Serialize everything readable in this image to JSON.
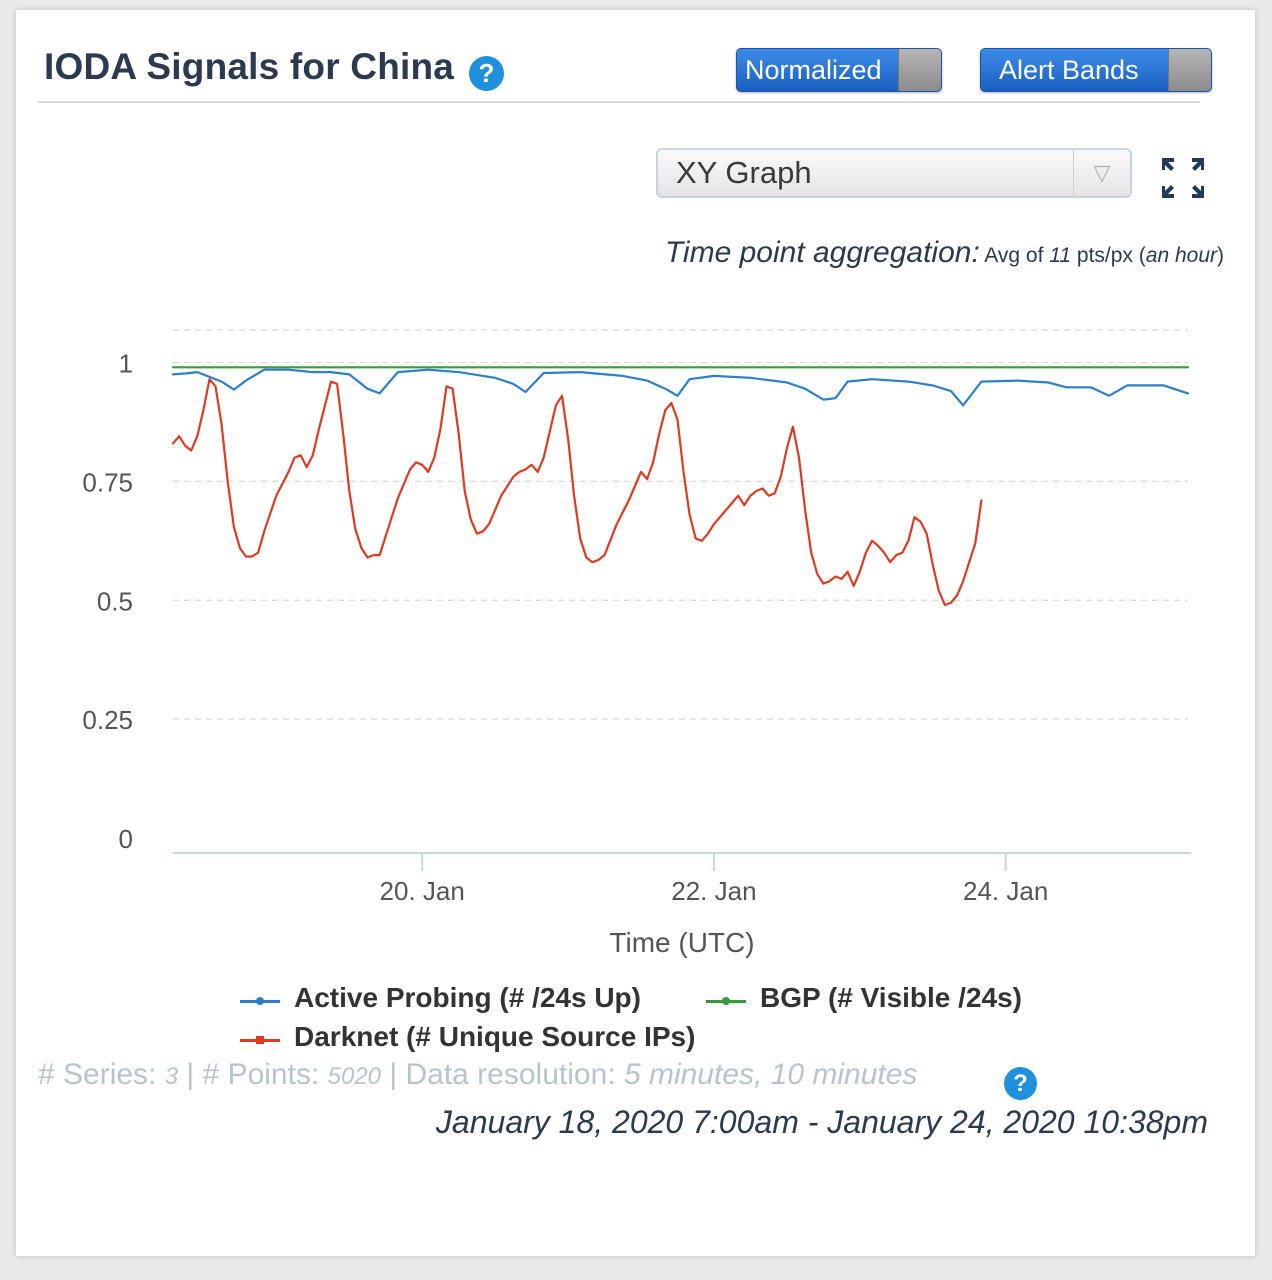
{
  "header": {
    "title": "IODA Signals for China",
    "help_icon": "question-circle-icon",
    "normalized_label": "Normalized",
    "alert_bands_label": "Alert Bands"
  },
  "view_select": {
    "value": "XY Graph"
  },
  "aggregation": {
    "label": "Time point aggregation:",
    "prefix": "Avg of ",
    "count": "11",
    "unit": " pts/px (",
    "period": "an hour",
    "suffix": ")"
  },
  "chart_data": {
    "type": "line",
    "xlabel": "Time (UTC)",
    "x_ticks": [
      "20. Jan",
      "22. Jan",
      "24. Jan"
    ],
    "y_ticks": [
      "0",
      "0.25",
      "0.5",
      "0.75",
      "1"
    ],
    "ylim": [
      0,
      1.1
    ],
    "x_range": [
      "2020-01-18 07:00",
      "2020-01-25 06:00"
    ],
    "grid": true,
    "legend_position": "bottom",
    "colors": {
      "active_probing": "#2d7fc9",
      "bgp": "#3a9a3a",
      "darknet": "#e03a22"
    },
    "series": [
      {
        "name": "Active Probing (# /24s Up)",
        "color": "#2d7fc9",
        "points": [
          [
            "2020-01-18 07:00",
            0.975
          ],
          [
            "2020-01-18 09:00",
            0.977
          ],
          [
            "2020-01-18 11:00",
            0.98
          ],
          [
            "2020-01-18 15:00",
            0.96
          ],
          [
            "2020-01-18 17:00",
            0.943
          ],
          [
            "2020-01-18 19:00",
            0.962
          ],
          [
            "2020-01-18 22:00",
            0.985
          ],
          [
            "2020-01-19 02:00",
            0.985
          ],
          [
            "2020-01-19 06:00",
            0.98
          ],
          [
            "2020-01-19 09:00",
            0.98
          ],
          [
            "2020-01-19 12:00",
            0.975
          ],
          [
            "2020-01-19 15:00",
            0.945
          ],
          [
            "2020-01-19 17:00",
            0.935
          ],
          [
            "2020-01-19 20:00",
            0.98
          ],
          [
            "2020-01-20 01:00",
            0.985
          ],
          [
            "2020-01-20 06:00",
            0.98
          ],
          [
            "2020-01-20 12:00",
            0.968
          ],
          [
            "2020-01-20 15:00",
            0.955
          ],
          [
            "2020-01-20 17:00",
            0.938
          ],
          [
            "2020-01-20 20:00",
            0.978
          ],
          [
            "2020-01-21 02:00",
            0.98
          ],
          [
            "2020-01-21 09:00",
            0.972
          ],
          [
            "2020-01-21 13:00",
            0.962
          ],
          [
            "2020-01-21 16:00",
            0.945
          ],
          [
            "2020-01-21 18:00",
            0.93
          ],
          [
            "2020-01-21 20:00",
            0.965
          ],
          [
            "2020-01-22 00:00",
            0.972
          ],
          [
            "2020-01-22 06:00",
            0.968
          ],
          [
            "2020-01-22 12:00",
            0.958
          ],
          [
            "2020-01-22 15:00",
            0.945
          ],
          [
            "2020-01-22 18:00",
            0.922
          ],
          [
            "2020-01-22 20:00",
            0.925
          ],
          [
            "2020-01-22 22:00",
            0.96
          ],
          [
            "2020-01-23 02:00",
            0.965
          ],
          [
            "2020-01-23 08:00",
            0.96
          ],
          [
            "2020-01-23 12:00",
            0.952
          ],
          [
            "2020-01-23 15:00",
            0.94
          ],
          [
            "2020-01-23 17:00",
            0.91
          ],
          [
            "2020-01-23 20:00",
            0.96
          ],
          [
            "2020-01-24 02:00",
            0.962
          ],
          [
            "2020-01-24 07:00",
            0.958
          ],
          [
            "2020-01-24 10:00",
            0.948
          ],
          [
            "2020-01-24 14:00",
            0.948
          ],
          [
            "2020-01-24 17:00",
            0.93
          ],
          [
            "2020-01-24 20:00",
            0.952
          ],
          [
            "2020-01-25 02:00",
            0.952
          ],
          [
            "2020-01-25 06:00",
            0.935
          ]
        ]
      },
      {
        "name": "BGP (# Visible /24s)",
        "color": "#3a9a3a",
        "points": [
          [
            "2020-01-18 07:00",
            0.99
          ],
          [
            "2020-01-25 06:00",
            0.99
          ]
        ]
      },
      {
        "name": "Darknet (# Unique Source IPs)",
        "color": "#e03a22",
        "points": [
          [
            "2020-01-18 07:00",
            0.83
          ],
          [
            "2020-01-18 08:00",
            0.845
          ],
          [
            "2020-01-18 09:00",
            0.825
          ],
          [
            "2020-01-18 10:00",
            0.815
          ],
          [
            "2020-01-18 11:00",
            0.845
          ],
          [
            "2020-01-18 12:00",
            0.9
          ],
          [
            "2020-01-18 13:00",
            0.965
          ],
          [
            "2020-01-18 14:00",
            0.95
          ],
          [
            "2020-01-18 15:00",
            0.87
          ],
          [
            "2020-01-18 16:00",
            0.75
          ],
          [
            "2020-01-18 17:00",
            0.655
          ],
          [
            "2020-01-18 18:00",
            0.61
          ],
          [
            "2020-01-18 19:00",
            0.592
          ],
          [
            "2020-01-18 20:00",
            0.592
          ],
          [
            "2020-01-18 21:00",
            0.6
          ],
          [
            "2020-01-18 22:00",
            0.645
          ],
          [
            "2020-01-19 00:00",
            0.72
          ],
          [
            "2020-01-19 02:00",
            0.77
          ],
          [
            "2020-01-19 03:00",
            0.8
          ],
          [
            "2020-01-19 04:00",
            0.805
          ],
          [
            "2020-01-19 05:00",
            0.78
          ],
          [
            "2020-01-19 06:00",
            0.805
          ],
          [
            "2020-01-19 07:00",
            0.86
          ],
          [
            "2020-01-19 09:00",
            0.96
          ],
          [
            "2020-01-19 10:00",
            0.955
          ],
          [
            "2020-01-19 11:00",
            0.85
          ],
          [
            "2020-01-19 12:00",
            0.73
          ],
          [
            "2020-01-19 13:00",
            0.65
          ],
          [
            "2020-01-19 14:00",
            0.61
          ],
          [
            "2020-01-19 15:00",
            0.59
          ],
          [
            "2020-01-19 16:00",
            0.595
          ],
          [
            "2020-01-19 17:00",
            0.595
          ],
          [
            "2020-01-19 18:00",
            0.635
          ],
          [
            "2020-01-19 20:00",
            0.715
          ],
          [
            "2020-01-19 22:00",
            0.775
          ],
          [
            "2020-01-19 23:00",
            0.79
          ],
          [
            "2020-01-20 00:00",
            0.785
          ],
          [
            "2020-01-20 01:00",
            0.77
          ],
          [
            "2020-01-20 02:00",
            0.8
          ],
          [
            "2020-01-20 03:00",
            0.86
          ],
          [
            "2020-01-20 04:00",
            0.95
          ],
          [
            "2020-01-20 05:00",
            0.945
          ],
          [
            "2020-01-20 06:00",
            0.85
          ],
          [
            "2020-01-20 07:00",
            0.73
          ],
          [
            "2020-01-20 08:00",
            0.67
          ],
          [
            "2020-01-20 09:00",
            0.64
          ],
          [
            "2020-01-20 10:00",
            0.645
          ],
          [
            "2020-01-20 11:00",
            0.66
          ],
          [
            "2020-01-20 13:00",
            0.72
          ],
          [
            "2020-01-20 15:00",
            0.76
          ],
          [
            "2020-01-20 16:00",
            0.77
          ],
          [
            "2020-01-20 17:00",
            0.775
          ],
          [
            "2020-01-20 18:00",
            0.785
          ],
          [
            "2020-01-20 19:00",
            0.77
          ],
          [
            "2020-01-20 20:00",
            0.8
          ],
          [
            "2020-01-20 22:00",
            0.91
          ],
          [
            "2020-01-20 23:00",
            0.93
          ],
          [
            "2020-01-21 00:00",
            0.84
          ],
          [
            "2020-01-21 01:00",
            0.72
          ],
          [
            "2020-01-21 02:00",
            0.63
          ],
          [
            "2020-01-21 03:00",
            0.59
          ],
          [
            "2020-01-21 04:00",
            0.58
          ],
          [
            "2020-01-21 05:00",
            0.585
          ],
          [
            "2020-01-21 06:00",
            0.595
          ],
          [
            "2020-01-21 08:00",
            0.66
          ],
          [
            "2020-01-21 10:00",
            0.71
          ],
          [
            "2020-01-21 12:00",
            0.77
          ],
          [
            "2020-01-21 13:00",
            0.755
          ],
          [
            "2020-01-21 14:00",
            0.79
          ],
          [
            "2020-01-21 15:00",
            0.85
          ],
          [
            "2020-01-21 16:00",
            0.9
          ],
          [
            "2020-01-21 17:00",
            0.915
          ],
          [
            "2020-01-21 18:00",
            0.88
          ],
          [
            "2020-01-21 19:00",
            0.77
          ],
          [
            "2020-01-21 20:00",
            0.68
          ],
          [
            "2020-01-21 21:00",
            0.63
          ],
          [
            "2020-01-21 22:00",
            0.625
          ],
          [
            "2020-01-21 23:00",
            0.64
          ],
          [
            "2020-01-22 00:00",
            0.66
          ],
          [
            "2020-01-22 02:00",
            0.69
          ],
          [
            "2020-01-22 04:00",
            0.72
          ],
          [
            "2020-01-22 05:00",
            0.7
          ],
          [
            "2020-01-22 06:00",
            0.72
          ],
          [
            "2020-01-22 07:00",
            0.73
          ],
          [
            "2020-01-22 08:00",
            0.735
          ],
          [
            "2020-01-22 09:00",
            0.72
          ],
          [
            "2020-01-22 10:00",
            0.725
          ],
          [
            "2020-01-22 11:00",
            0.76
          ],
          [
            "2020-01-22 12:00",
            0.82
          ],
          [
            "2020-01-22 13:00",
            0.865
          ],
          [
            "2020-01-22 14:00",
            0.8
          ],
          [
            "2020-01-22 15:00",
            0.69
          ],
          [
            "2020-01-22 16:00",
            0.6
          ],
          [
            "2020-01-22 17:00",
            0.555
          ],
          [
            "2020-01-22 18:00",
            0.535
          ],
          [
            "2020-01-22 19:00",
            0.54
          ],
          [
            "2020-01-22 20:00",
            0.55
          ],
          [
            "2020-01-22 21:00",
            0.545
          ],
          [
            "2020-01-22 22:00",
            0.56
          ],
          [
            "2020-01-22 23:00",
            0.53
          ],
          [
            "2020-01-23 00:00",
            0.56
          ],
          [
            "2020-01-23 01:00",
            0.6
          ],
          [
            "2020-01-23 02:00",
            0.625
          ],
          [
            "2020-01-23 03:00",
            0.615
          ],
          [
            "2020-01-23 04:00",
            0.6
          ],
          [
            "2020-01-23 05:00",
            0.58
          ],
          [
            "2020-01-23 06:00",
            0.595
          ],
          [
            "2020-01-23 07:00",
            0.6
          ],
          [
            "2020-01-23 08:00",
            0.625
          ],
          [
            "2020-01-23 09:00",
            0.675
          ],
          [
            "2020-01-23 10:00",
            0.665
          ],
          [
            "2020-01-23 11:00",
            0.64
          ],
          [
            "2020-01-23 12:00",
            0.575
          ],
          [
            "2020-01-23 13:00",
            0.52
          ],
          [
            "2020-01-23 14:00",
            0.49
          ],
          [
            "2020-01-23 15:00",
            0.495
          ],
          [
            "2020-01-23 16:00",
            0.51
          ],
          [
            "2020-01-23 17:00",
            0.54
          ],
          [
            "2020-01-23 18:00",
            0.58
          ],
          [
            "2020-01-23 19:00",
            0.62
          ],
          [
            "2020-01-23 20:00",
            0.71
          ]
        ]
      }
    ]
  },
  "legend": {
    "active_probing": "Active Probing (# /24s Up)",
    "bgp": "BGP (# Visible /24s)",
    "darknet": "Darknet (# Unique Source IPs)"
  },
  "stats": {
    "series_label": "# Series: ",
    "series_count": "3",
    "points_label": " | # Points: ",
    "points_count": "5020",
    "resolution_label": " | Data resolution: ",
    "resolution_value": "5 minutes, 10 minutes"
  },
  "date_range": "January 18, 2020 7:00am - January 24, 2020 10:38pm"
}
